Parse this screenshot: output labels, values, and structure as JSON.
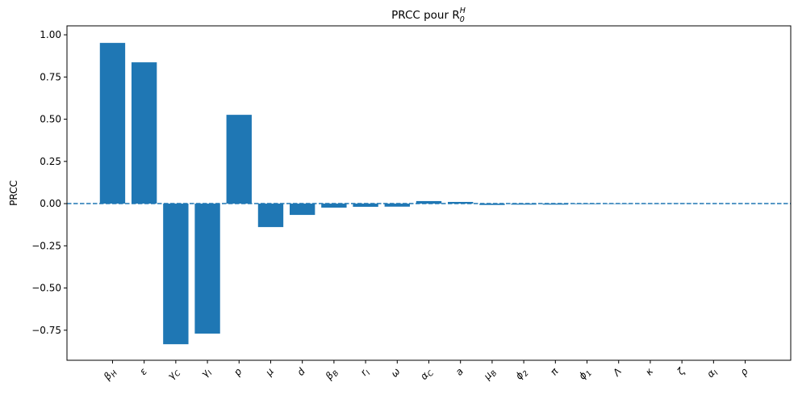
{
  "chart_data": {
    "type": "bar",
    "title": "PRCC pour R",
    "title_math": {
      "base": "R",
      "sub": "0",
      "sup": "H"
    },
    "xlabel": "",
    "ylabel": "PRCC",
    "categories": [
      "βH",
      "ε",
      "γC",
      "γI",
      "p",
      "μ",
      "d",
      "βB",
      "rI",
      "ω",
      "αC",
      "a",
      "μB",
      "ϕ2",
      "π",
      "ϕ1",
      "Λ",
      "κ",
      "ζ",
      "αI",
      "ρ"
    ],
    "category_labels": [
      {
        "b": "β",
        "s": "H"
      },
      {
        "b": "ε",
        "s": ""
      },
      {
        "b": "γ",
        "s": "C"
      },
      {
        "b": "γ",
        "s": "I"
      },
      {
        "b": "p",
        "s": ""
      },
      {
        "b": "μ",
        "s": ""
      },
      {
        "b": "d",
        "s": ""
      },
      {
        "b": "β",
        "s": "B"
      },
      {
        "b": "r",
        "s": "I"
      },
      {
        "b": "ω",
        "s": ""
      },
      {
        "b": "α",
        "s": "C"
      },
      {
        "b": "a",
        "s": ""
      },
      {
        "b": "μ",
        "s": "B"
      },
      {
        "b": "ϕ",
        "s": "2"
      },
      {
        "b": "π",
        "s": ""
      },
      {
        "b": "ϕ",
        "s": "1"
      },
      {
        "b": "Λ",
        "s": ""
      },
      {
        "b": "κ",
        "s": ""
      },
      {
        "b": "ζ",
        "s": ""
      },
      {
        "b": "α",
        "s": "I"
      },
      {
        "b": "ρ",
        "s": ""
      }
    ],
    "values": [
      0.952,
      0.837,
      -0.833,
      -0.77,
      0.526,
      -0.139,
      -0.067,
      -0.024,
      -0.019,
      -0.018,
      0.015,
      0.01,
      -0.008,
      -0.006,
      -0.006,
      -0.003,
      -0.002,
      -0.001,
      0.001,
      0.0,
      0.0
    ],
    "ylim": [
      -0.928,
      1.053
    ],
    "yticks": [
      -0.75,
      -0.5,
      -0.25,
      0.0,
      0.25,
      0.5,
      0.75,
      1.0
    ],
    "ytick_labels": [
      "−0.75",
      "−0.50",
      "−0.25",
      "0.00",
      "0.25",
      "0.50",
      "0.75",
      "1.00"
    ],
    "reference_line": {
      "y": 0,
      "style": "dashed"
    },
    "bar_color": "#1f77b4",
    "grid": false
  }
}
